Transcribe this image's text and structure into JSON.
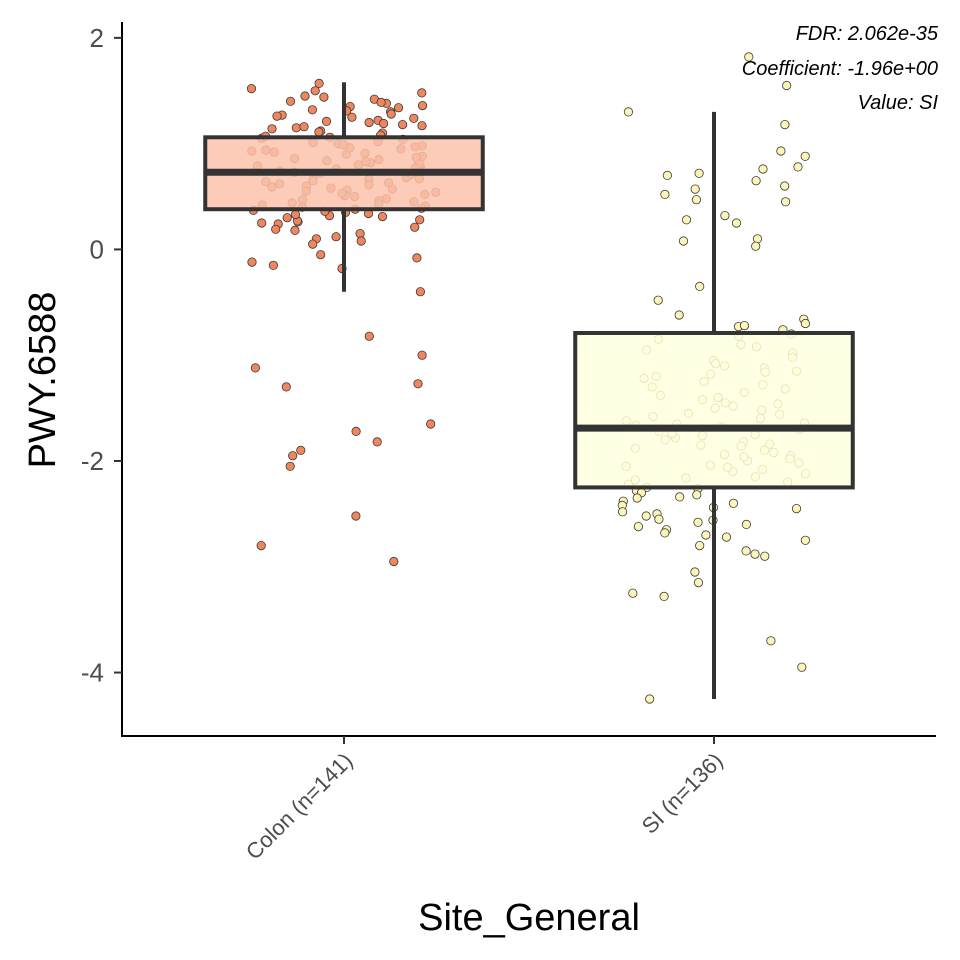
{
  "chart_data": {
    "type": "box",
    "title": "",
    "xlabel": "Site_General",
    "ylabel": "PWY.6588",
    "ylim": [
      -4.6,
      2.15
    ],
    "yticks": [
      -4,
      -2,
      0,
      2
    ],
    "ytick_labels": [
      "-4",
      "-2",
      "0",
      "2"
    ],
    "categories": [
      "Colon (n=141)",
      "SI (n=136)"
    ],
    "grid": false,
    "legend": "none",
    "annotations": [
      "FDR: 2.062e-35",
      "Coefficient: -1.96e+00",
      "Value: SI"
    ],
    "boxes": [
      {
        "category": "Colon (n=141)",
        "whisker_low": -0.4,
        "q1": 0.38,
        "median": 0.73,
        "q3": 1.06,
        "whisker_high": 1.58,
        "fill": "#fcc3ac",
        "point_color": "#f0865e"
      },
      {
        "category": "SI (n=136)",
        "whisker_low": -4.25,
        "q1": -2.25,
        "median": -1.69,
        "q3": -0.79,
        "whisker_high": 1.3,
        "fill": "#ffffde",
        "point_color": "#fbf5b8"
      }
    ],
    "points": [
      {
        "category": "Colon (n=141)",
        "y": [
          1.52,
          1.48,
          1.45,
          1.4,
          1.38,
          1.35,
          1.32,
          1.3,
          1.28,
          1.25,
          1.22,
          1.2,
          1.18,
          1.15,
          1.12,
          1.1,
          1.08,
          1.05,
          1.02,
          1.0,
          0.98,
          0.95,
          0.92,
          0.9,
          0.88,
          0.85,
          0.82,
          0.8,
          0.78,
          0.75,
          0.72,
          0.7,
          0.68,
          0.65,
          0.62,
          0.6,
          0.58,
          0.55,
          0.52,
          0.5,
          0.48,
          0.45,
          0.42,
          0.4,
          0.38,
          0.35,
          0.32,
          0.3,
          0.28,
          0.25,
          1.57,
          1.5,
          1.42,
          1.36,
          1.31,
          1.27,
          1.21,
          1.16,
          1.11,
          1.06,
          1.01,
          0.96,
          0.91,
          0.86,
          0.81,
          0.76,
          0.71,
          0.66,
          0.61,
          0.56,
          0.51,
          0.46,
          0.41,
          0.36,
          0.31,
          0.26,
          0.15,
          0.1,
          0.05,
          1.44,
          1.34,
          1.24,
          1.14,
          1.04,
          0.94,
          0.84,
          0.74,
          0.64,
          0.54,
          0.44,
          0.34,
          0.24,
          0.12,
          0.08,
          1.26,
          1.17,
          0.97,
          0.87,
          0.77,
          0.67,
          0.57,
          0.47,
          0.37,
          0.27,
          1.07,
          0.93,
          0.83,
          0.73,
          0.63,
          0.53,
          0.43,
          0.33,
          0.21,
          0.18,
          -0.05,
          -0.08,
          -0.15,
          -0.18,
          -0.12,
          -0.4,
          -0.82,
          -1.0,
          -1.12,
          -1.27,
          -1.3,
          -1.65,
          -1.72,
          -1.82,
          -1.9,
          -1.95,
          -2.05,
          -2.52,
          -2.8,
          -2.95,
          1.39,
          1.19,
          0.99,
          0.79,
          0.59,
          0.39,
          0.19
        ]
      },
      {
        "category": "SI (n=136)",
        "y": [
          1.82,
          1.55,
          1.3,
          1.18,
          0.93,
          0.88,
          0.78,
          0.76,
          0.72,
          0.7,
          0.65,
          0.6,
          0.57,
          0.52,
          0.47,
          0.45,
          0.32,
          0.28,
          0.25,
          0.1,
          0.08,
          0.03,
          -0.35,
          -0.48,
          -0.62,
          -0.66,
          -0.7,
          -0.73,
          -0.76,
          -0.8,
          -0.85,
          -0.9,
          -0.95,
          -1.05,
          -1.1,
          -1.12,
          -1.15,
          -1.18,
          -1.2,
          -1.25,
          -1.3,
          -1.35,
          -1.4,
          -1.45,
          -1.5,
          -1.52,
          -1.55,
          -1.6,
          -1.62,
          -1.65,
          -1.68,
          -1.72,
          -1.75,
          -1.78,
          -1.8,
          -1.82,
          -1.85,
          -1.88,
          -1.9,
          -1.92,
          -1.95,
          -1.98,
          -2.0,
          -2.02,
          -2.05,
          -2.08,
          -2.1,
          -2.15,
          -2.2,
          -2.22,
          -2.25,
          -2.28,
          -2.3,
          -2.35,
          -2.38,
          -2.4,
          -2.45,
          -2.5,
          -2.52,
          -2.55,
          -2.6,
          -2.65,
          -2.7,
          -2.75,
          -2.8,
          -2.85,
          -2.9,
          -3.05,
          -3.15,
          -3.25,
          -3.28,
          -3.7,
          -3.95,
          -4.25,
          -0.98,
          -1.08,
          -1.22,
          -1.38,
          -1.48,
          -1.58,
          -1.66,
          -1.74,
          -1.86,
          -1.94,
          -2.04,
          -2.12,
          -2.18,
          -2.26,
          -2.34,
          -2.42,
          -2.48,
          -2.58,
          -2.62,
          -2.68,
          -1.02,
          -1.16,
          -1.28,
          -1.42,
          -1.56,
          -1.7,
          -1.84,
          -1.96,
          -2.06,
          -2.16,
          -2.32,
          -2.44,
          -2.56,
          -2.72,
          -2.88,
          -0.72,
          -0.82,
          -0.92,
          -1.32,
          -1.46,
          -1.64,
          -1.76
        ]
      }
    ]
  }
}
